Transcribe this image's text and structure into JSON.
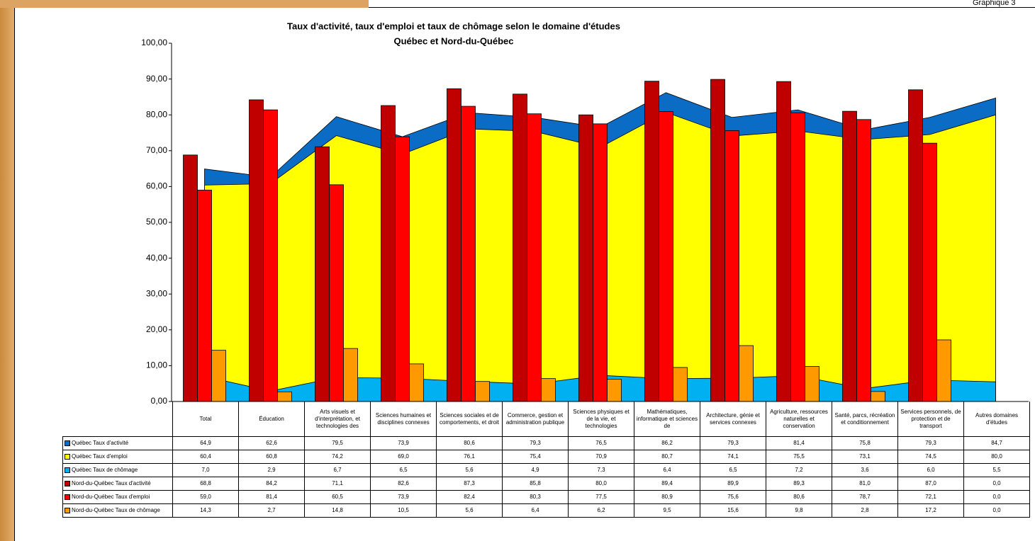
{
  "chart_data": {
    "type": "combo",
    "corner_label": "Graphique 3",
    "title": "Taux d'activité, taux d'emploi et taux de chômage selon le domaine d'études",
    "subtitle": "Québec et Nord-du-Québec",
    "categories": [
      "Total",
      "Éducation",
      "Arts visuels et d'interprétation, et technologies des",
      "Sciences humaines et disciplines connexes",
      "Sciences sociales et de comportements, et droit",
      "Commerce, gestion et administration publique",
      "Sciences physiques et de la vie, et technologies",
      "Mathématiques, informatique et sciences de",
      "Architecture, génie et services connexes",
      "Agriculture, ressources naturelles et conservation",
      "Santé, parcs, récréation et conditionnement",
      "Services personnels, de protection et de transport",
      "Autres domaines d'études"
    ],
    "series": [
      {
        "name": "Québec Taux d'activité",
        "type": "area",
        "color": "#0a6cc4",
        "values": [
          64.9,
          62.6,
          79.5,
          73.9,
          80.6,
          79.3,
          76.5,
          86.2,
          79.3,
          81.4,
          75.8,
          79.3,
          84.7
        ],
        "value_labels": [
          "64,9",
          "62,6",
          "79,5",
          "73,9",
          "80,6",
          "79,3",
          "76,5",
          "86,2",
          "79,3",
          "81,4",
          "75,8",
          "79,3",
          "84,7"
        ]
      },
      {
        "name": "Québec Taux d'emploi",
        "type": "area",
        "color": "#ffff00",
        "values": [
          60.4,
          60.8,
          74.2,
          69.0,
          76.1,
          75.4,
          70.9,
          80.7,
          74.1,
          75.5,
          73.1,
          74.5,
          80.0
        ],
        "value_labels": [
          "60,4",
          "60,8",
          "74,2",
          "69,0",
          "76,1",
          "75,4",
          "70,9",
          "80,7",
          "74,1",
          "75,5",
          "73,1",
          "74,5",
          "80,0"
        ]
      },
      {
        "name": "Québec Taux de chômage",
        "type": "area",
        "color": "#00b0f0",
        "values": [
          7.0,
          2.9,
          6.7,
          6.5,
          5.6,
          4.9,
          7.3,
          6.4,
          6.5,
          7.2,
          3.6,
          6.0,
          5.5
        ],
        "value_labels": [
          "7,0",
          "2,9",
          "6,7",
          "6,5",
          "5,6",
          "4,9",
          "7,3",
          "6,4",
          "6,5",
          "7,2",
          "3,6",
          "6,0",
          "5,5"
        ]
      },
      {
        "name": "Nord-du-Québec Taux d'activité",
        "type": "bar",
        "color": "#c00000",
        "values": [
          68.8,
          84.2,
          71.1,
          82.6,
          87.3,
          85.8,
          80.0,
          89.4,
          89.9,
          89.3,
          81.0,
          87.0,
          0.0
        ],
        "value_labels": [
          "68,8",
          "84,2",
          "71,1",
          "82,6",
          "87,3",
          "85,8",
          "80,0",
          "89,4",
          "89,9",
          "89,3",
          "81,0",
          "87,0",
          "0,0"
        ]
      },
      {
        "name": "Nord-du-Québec Taux d'emploi",
        "type": "bar",
        "color": "#ff0000",
        "values": [
          59.0,
          81.4,
          60.5,
          73.9,
          82.4,
          80.3,
          77.5,
          80.9,
          75.6,
          80.6,
          78.7,
          72.1,
          0.0
        ],
        "value_labels": [
          "59,0",
          "81,4",
          "60,5",
          "73,9",
          "82,4",
          "80,3",
          "77,5",
          "80,9",
          "75,6",
          "80,6",
          "78,7",
          "72,1",
          "0,0"
        ]
      },
      {
        "name": "Nord-du-Québec Taux de chômage",
        "type": "bar",
        "color": "#ff9900",
        "values": [
          14.3,
          2.7,
          14.8,
          10.5,
          5.6,
          6.4,
          6.2,
          9.5,
          15.6,
          9.8,
          2.8,
          17.2,
          0.0
        ],
        "value_labels": [
          "14,3",
          "2,7",
          "14,8",
          "10,5",
          "5,6",
          "6,4",
          "6,2",
          "9,5",
          "15,6",
          "9,8",
          "2,8",
          "17,2",
          "0,0"
        ]
      }
    ],
    "ylim": [
      0,
      100
    ],
    "yticks": [
      {
        "value": 0,
        "label": "0,00"
      },
      {
        "value": 10,
        "label": "10,00"
      },
      {
        "value": 20,
        "label": "20,00"
      },
      {
        "value": 30,
        "label": "30,00"
      },
      {
        "value": 40,
        "label": "40,00"
      },
      {
        "value": 50,
        "label": "50,00"
      },
      {
        "value": 60,
        "label": "60,00"
      },
      {
        "value": 70,
        "label": "70,00"
      },
      {
        "value": 80,
        "label": "80,00"
      },
      {
        "value": 90,
        "label": "90,00"
      },
      {
        "value": 100,
        "label": "100,00"
      }
    ]
  }
}
